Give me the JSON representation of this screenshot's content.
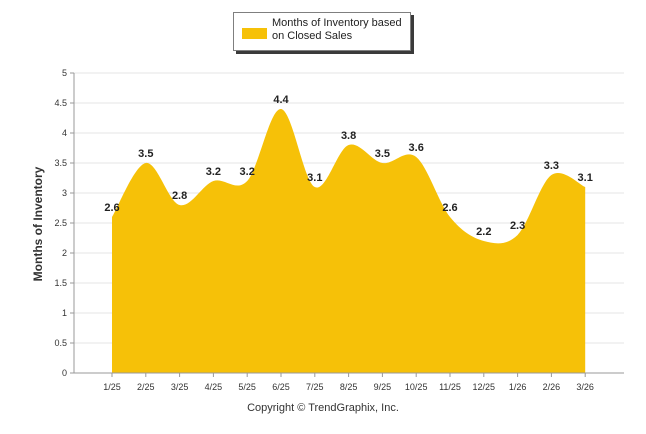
{
  "chart_data": {
    "type": "area",
    "title": "",
    "legend": {
      "label": "Months of Inventory based on Closed Sales",
      "placement": "top-center"
    },
    "ylabel": "Months of Inventory",
    "xlabel": "",
    "ylim": [
      0,
      5
    ],
    "yticks": [
      "0",
      "0.5",
      "1",
      "1.5",
      "2",
      "2.5",
      "3",
      "3.5",
      "4",
      "4.5",
      "5"
    ],
    "categories": [
      "1/25",
      "2/25",
      "3/25",
      "4/25",
      "5/25",
      "6/25",
      "7/25",
      "8/25",
      "9/25",
      "10/25",
      "11/25",
      "12/25",
      "1/26",
      "2/26",
      "3/26"
    ],
    "values": [
      2.6,
      3.5,
      2.8,
      3.2,
      3.2,
      4.4,
      3.1,
      3.8,
      3.5,
      3.6,
      2.6,
      2.2,
      2.3,
      3.3,
      3.1
    ],
    "labels": [
      "2.6",
      "3.5",
      "2.8",
      "3.2",
      "3.2",
      "4.4",
      "3.1",
      "3.8",
      "3.5",
      "3.6",
      "2.6",
      "2.2",
      "2.3",
      "3.3",
      "3.1"
    ],
    "grid": true
  },
  "footer": {
    "copyright": "Copyright © TrendGraphix, Inc."
  },
  "colors": {
    "fill": "#f6c108",
    "grid": "#e6e6e6",
    "axis": "#999999",
    "text": "#222222"
  }
}
